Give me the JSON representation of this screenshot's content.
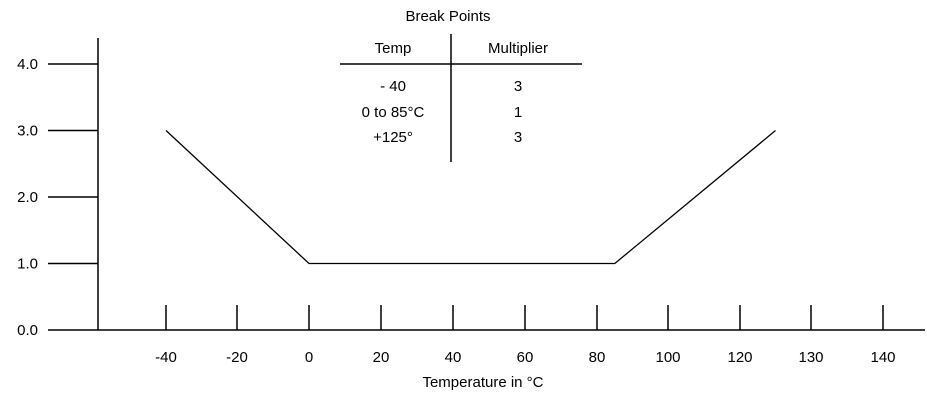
{
  "chart_data": {
    "type": "line",
    "xlabel": "Temperature in °C",
    "ylabel": "",
    "x_tick_labels": [
      "-40",
      "-20",
      "0",
      "20",
      "40",
      "60",
      "80",
      "100",
      "120",
      "130",
      "140"
    ],
    "y_tick_labels": [
      "0.0",
      "1.0",
      "2.0",
      "3.0",
      "4.0"
    ],
    "ylim": [
      0,
      4
    ],
    "grid": false,
    "series": [
      {
        "x": [
          -40,
          0,
          85,
          125
        ],
        "y": [
          3,
          1,
          1,
          3
        ]
      }
    ],
    "table": {
      "title": "Break Points",
      "headers": [
        "Temp",
        "Multiplier"
      ],
      "rows": [
        [
          "- 40",
          "3"
        ],
        [
          "0 to 85°C",
          "1"
        ],
        [
          "+125°",
          "3"
        ]
      ]
    }
  },
  "colors": {
    "line": "#000000",
    "background": "#ffffff"
  }
}
